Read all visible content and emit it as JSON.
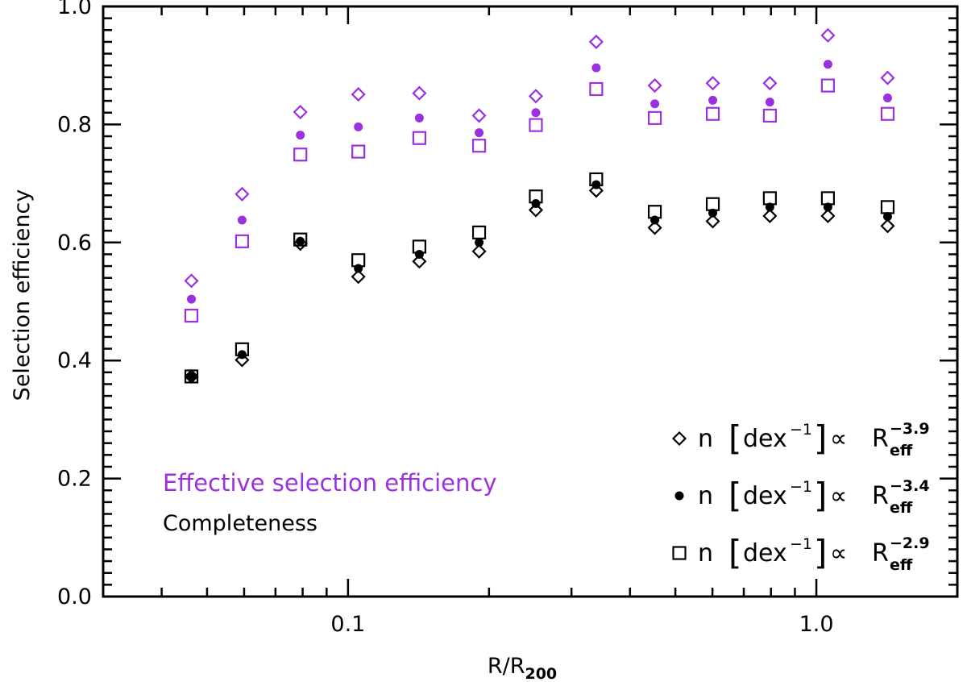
{
  "chart_data": {
    "type": "scatter",
    "xscale": "log",
    "xlim": [
      0.03,
      2.0
    ],
    "ylim": [
      0.0,
      1.0
    ],
    "xlabel": "R/R",
    "xlabel_sub": "200",
    "ylabel": "Selection efficiency",
    "xticks": [
      {
        "value": 0.1,
        "label": "0.1"
      },
      {
        "value": 1.0,
        "label": "1.0"
      }
    ],
    "yticks": [
      {
        "value": 0.0,
        "label": "0.0"
      },
      {
        "value": 0.2,
        "label": "0.2"
      },
      {
        "value": 0.4,
        "label": "0.4"
      },
      {
        "value": 0.6,
        "label": "0.6"
      },
      {
        "value": 0.8,
        "label": "0.8"
      },
      {
        "value": 1.0,
        "label": "1.0"
      }
    ],
    "x": [
      0.0463,
      0.0594,
      0.0791,
      0.1052,
      0.142,
      0.1905,
      0.2518,
      0.3388,
      0.4519,
      0.601,
      0.7957,
      1.0585,
      1.4195
    ],
    "series": [
      {
        "name": "Effective selection efficiency, n ∝ R_eff^-3.9",
        "group": "effective",
        "marker": "diamond",
        "color": "#9b30e0",
        "values": [
          0.535,
          0.682,
          0.821,
          0.851,
          0.853,
          0.815,
          0.848,
          0.94,
          0.866,
          0.87,
          0.87,
          0.951,
          0.879
        ]
      },
      {
        "name": "Effective selection efficiency, n ∝ R_eff^-3.4",
        "group": "effective",
        "marker": "circle",
        "color": "#9b30e0",
        "values": [
          0.504,
          0.638,
          0.782,
          0.796,
          0.811,
          0.786,
          0.82,
          0.896,
          0.835,
          0.841,
          0.838,
          0.902,
          0.845
        ]
      },
      {
        "name": "Effective selection efficiency, n ∝ R_eff^-2.9",
        "group": "effective",
        "marker": "square",
        "color": "#9b30e0",
        "values": [
          0.476,
          0.602,
          0.749,
          0.754,
          0.777,
          0.764,
          0.799,
          0.86,
          0.811,
          0.818,
          0.815,
          0.866,
          0.818
        ]
      },
      {
        "name": "Completeness, n ∝ R_eff^-3.9",
        "group": "completeness",
        "marker": "diamond",
        "color": "#000000",
        "values": [
          0.373,
          0.401,
          0.598,
          0.542,
          0.568,
          0.585,
          0.655,
          0.688,
          0.625,
          0.636,
          0.645,
          0.645,
          0.628
        ]
      },
      {
        "name": "Completeness, n ∝ R_eff^-3.4",
        "group": "completeness",
        "marker": "circle",
        "color": "#000000",
        "values": [
          0.373,
          0.41,
          0.602,
          0.556,
          0.58,
          0.6,
          0.666,
          0.698,
          0.638,
          0.65,
          0.66,
          0.66,
          0.644
        ]
      },
      {
        "name": "Completeness, n ∝ R_eff^-2.9",
        "group": "completeness",
        "marker": "square",
        "color": "#000000",
        "values": [
          0.373,
          0.419,
          0.605,
          0.57,
          0.593,
          0.617,
          0.678,
          0.707,
          0.652,
          0.665,
          0.675,
          0.675,
          0.66
        ]
      }
    ],
    "annotations": [
      {
        "text": "Effective selection efficiency",
        "color": "#9b30e0"
      },
      {
        "text": "Completeness",
        "color": "#000000"
      }
    ],
    "legend_position": "bottom-right",
    "legend": [
      {
        "marker": "diamond",
        "text": "n",
        "bracket_left": "[",
        "unit": "dex",
        "unit_exp": "−1",
        "bracket_right": "]",
        "prop": "∝",
        "var": "R",
        "var_sub": "eff",
        "exponent": "−3.9"
      },
      {
        "marker": "circle",
        "text": "n",
        "bracket_left": "[",
        "unit": "dex",
        "unit_exp": "−1",
        "bracket_right": "]",
        "prop": "∝",
        "var": "R",
        "var_sub": "eff",
        "exponent": "−3.4"
      },
      {
        "marker": "square",
        "text": "n",
        "bracket_left": "[",
        "unit": "dex",
        "unit_exp": "−1",
        "bracket_right": "]",
        "prop": "∝",
        "var": "R",
        "var_sub": "eff",
        "exponent": "−2.9"
      }
    ]
  }
}
